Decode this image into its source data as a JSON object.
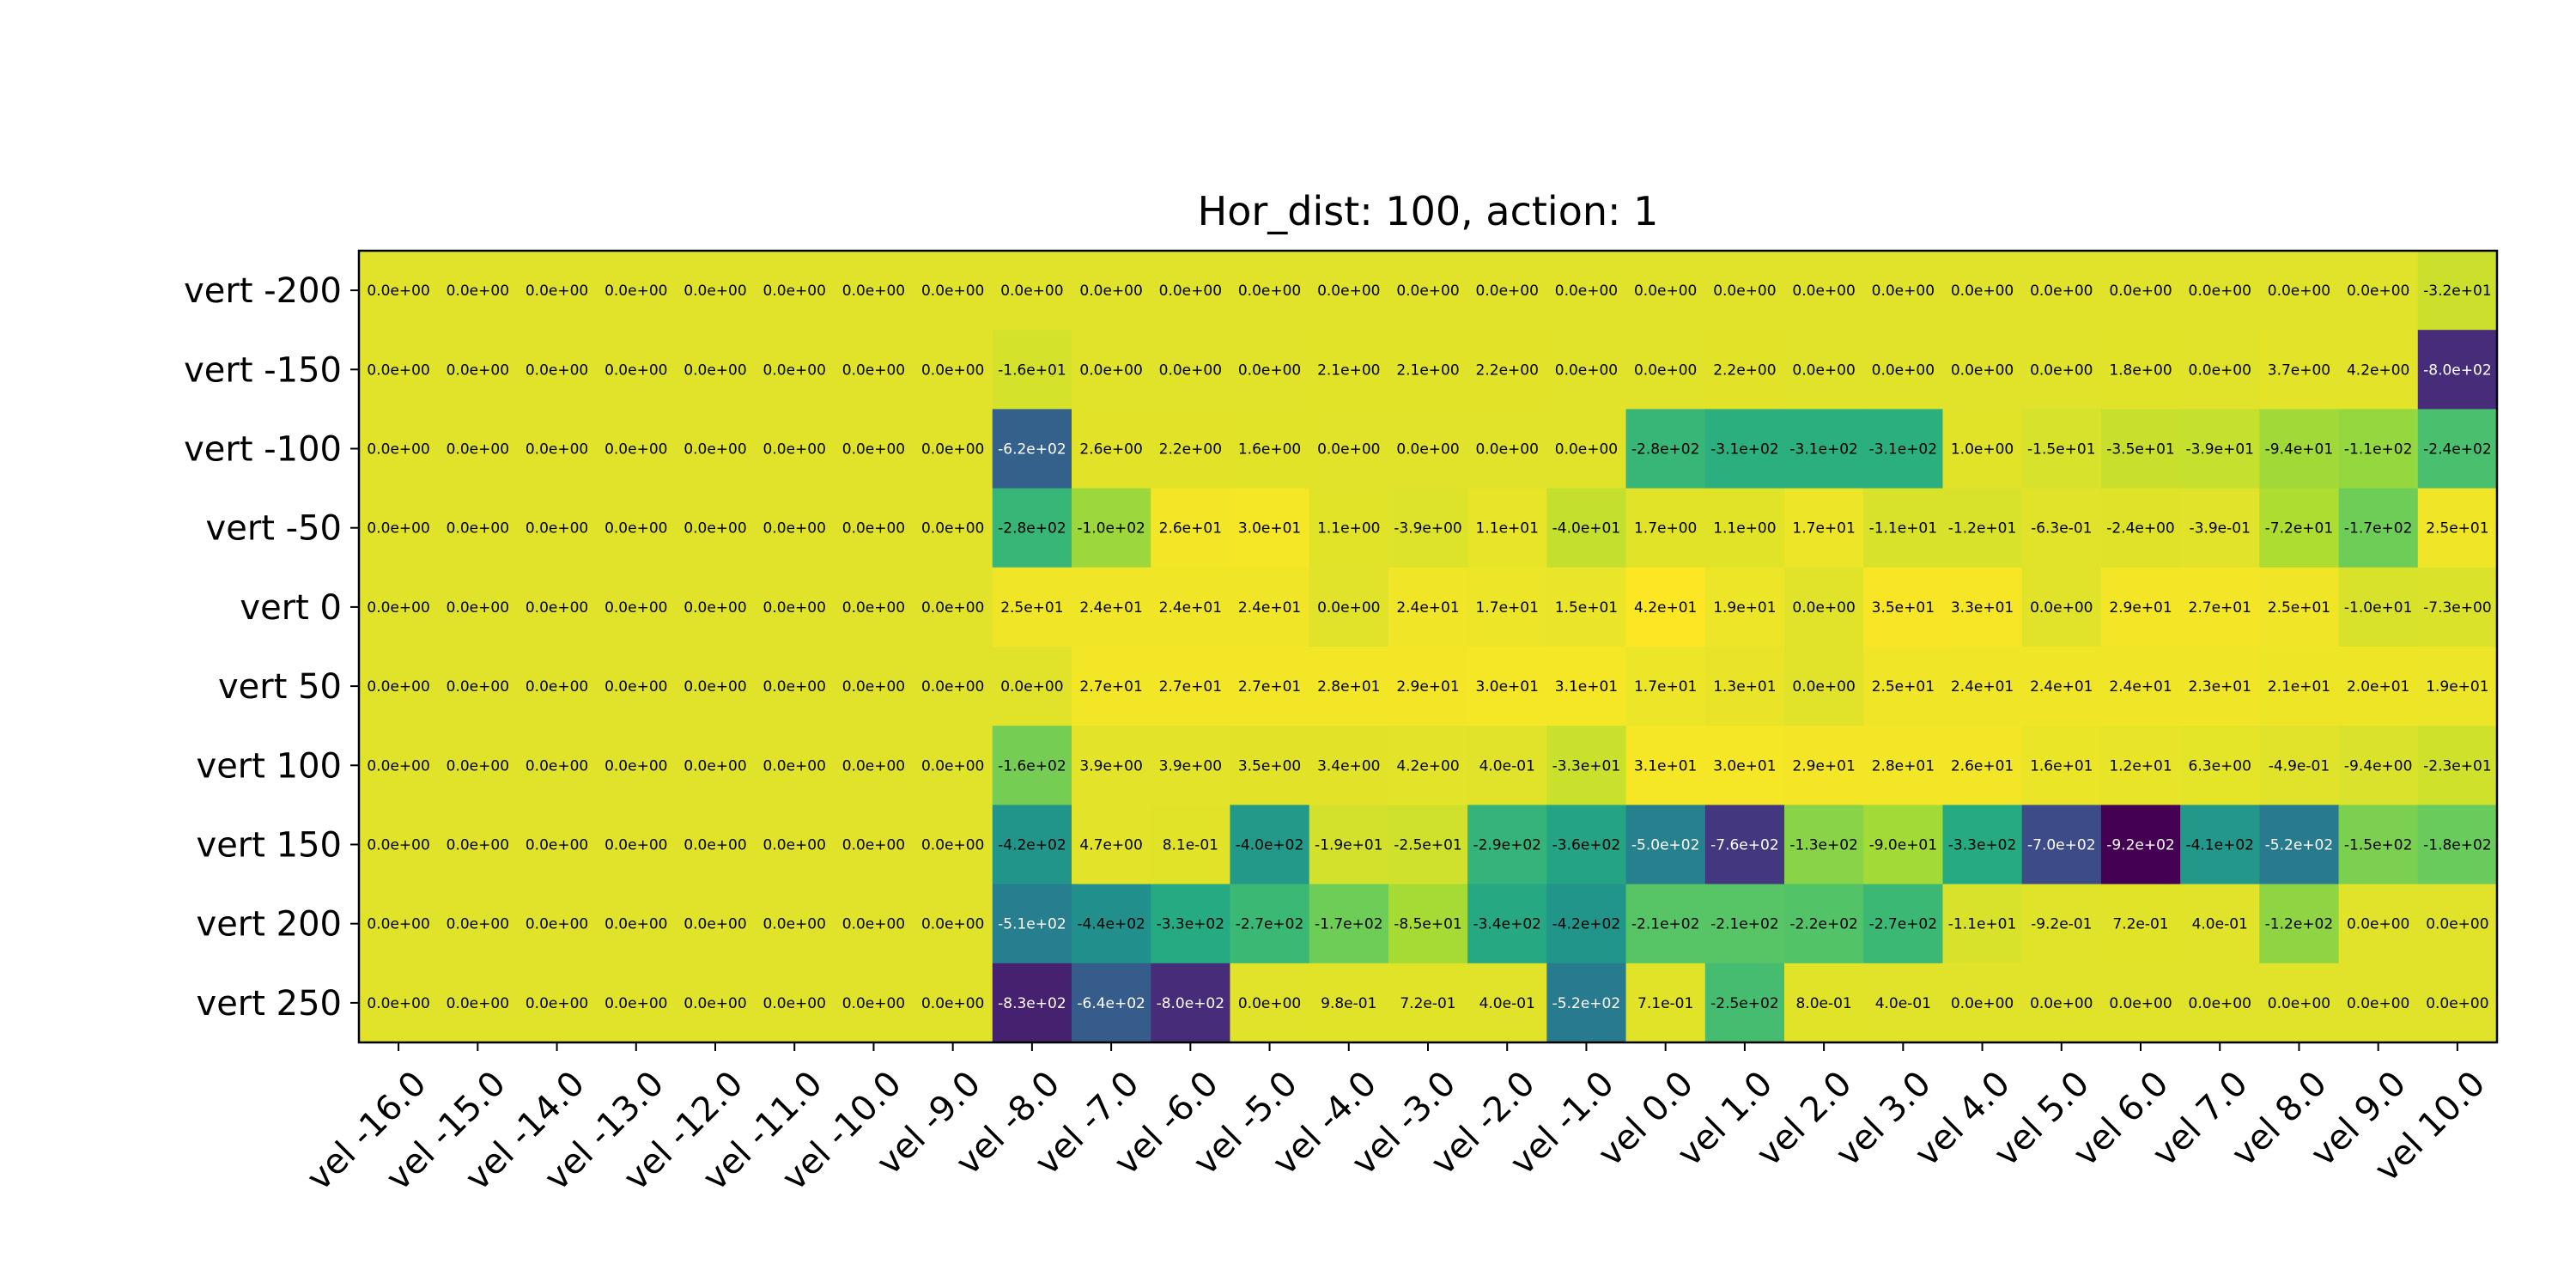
{
  "chart_data": {
    "type": "heatmap",
    "title": "Hor_dist: 100, action: 1",
    "x_labels": [
      "vel -16.0",
      "vel -15.0",
      "vel -14.0",
      "vel -13.0",
      "vel -12.0",
      "vel -11.0",
      "vel -10.0",
      "vel -9.0",
      "vel -8.0",
      "vel -7.0",
      "vel -6.0",
      "vel -5.0",
      "vel -4.0",
      "vel -3.0",
      "vel -2.0",
      "vel -1.0",
      "vel 0.0",
      "vel 1.0",
      "vel 2.0",
      "vel 3.0",
      "vel 4.0",
      "vel 5.0",
      "vel 6.0",
      "vel 7.0",
      "vel 8.0",
      "vel 9.0",
      "vel 10.0"
    ],
    "y_labels": [
      "vert -200",
      "vert -150",
      "vert -100",
      "vert -50",
      "vert 0",
      "vert 50",
      "vert 100",
      "vert 150",
      "vert 200",
      "vert 250"
    ],
    "colormap": "viridis",
    "cell_labels": [
      [
        "0.0e+00",
        "0.0e+00",
        "0.0e+00",
        "0.0e+00",
        "0.0e+00",
        "0.0e+00",
        "0.0e+00",
        "0.0e+00",
        "0.0e+00",
        "0.0e+00",
        "0.0e+00",
        "0.0e+00",
        "0.0e+00",
        "0.0e+00",
        "0.0e+00",
        "0.0e+00",
        "0.0e+00",
        "0.0e+00",
        "0.0e+00",
        "0.0e+00",
        "0.0e+00",
        "0.0e+00",
        "0.0e+00",
        "0.0e+00",
        "0.0e+00",
        "0.0e+00",
        "-3.2e+01"
      ],
      [
        "0.0e+00",
        "0.0e+00",
        "0.0e+00",
        "0.0e+00",
        "0.0e+00",
        "0.0e+00",
        "0.0e+00",
        "0.0e+00",
        "-1.6e+01",
        "0.0e+00",
        "0.0e+00",
        "0.0e+00",
        "2.1e+00",
        "2.1e+00",
        "2.2e+00",
        "0.0e+00",
        "0.0e+00",
        "2.2e+00",
        "0.0e+00",
        "0.0e+00",
        "0.0e+00",
        "0.0e+00",
        "1.8e+00",
        "0.0e+00",
        "3.7e+00",
        "4.2e+00",
        "-8.0e+02"
      ],
      [
        "0.0e+00",
        "0.0e+00",
        "0.0e+00",
        "0.0e+00",
        "0.0e+00",
        "0.0e+00",
        "0.0e+00",
        "0.0e+00",
        "-6.2e+02",
        "2.6e+00",
        "2.2e+00",
        "1.6e+00",
        "0.0e+00",
        "0.0e+00",
        "0.0e+00",
        "0.0e+00",
        "-2.8e+02",
        "-3.1e+02",
        "-3.1e+02",
        "-3.1e+02",
        "1.0e+00",
        "-1.5e+01",
        "-3.5e+01",
        "-3.9e+01",
        "-9.4e+01",
        "-1.1e+02",
        "-2.4e+02"
      ],
      [
        "0.0e+00",
        "0.0e+00",
        "0.0e+00",
        "0.0e+00",
        "0.0e+00",
        "0.0e+00",
        "0.0e+00",
        "0.0e+00",
        "-2.8e+02",
        "-1.0e+02",
        "2.6e+01",
        "3.0e+01",
        "1.1e+00",
        "-3.9e+00",
        "1.1e+01",
        "-4.0e+01",
        "1.7e+00",
        "1.1e+00",
        "1.7e+01",
        "-1.1e+01",
        "-1.2e+01",
        "-6.3e-01",
        "-2.4e+00",
        "-3.9e-01",
        "-7.2e+01",
        "-1.7e+02",
        "2.5e+01"
      ],
      [
        "0.0e+00",
        "0.0e+00",
        "0.0e+00",
        "0.0e+00",
        "0.0e+00",
        "0.0e+00",
        "0.0e+00",
        "0.0e+00",
        "2.5e+01",
        "2.4e+01",
        "2.4e+01",
        "2.4e+01",
        "0.0e+00",
        "2.4e+01",
        "1.7e+01",
        "1.5e+01",
        "4.2e+01",
        "1.9e+01",
        "0.0e+00",
        "3.5e+01",
        "3.3e+01",
        "0.0e+00",
        "2.9e+01",
        "2.7e+01",
        "2.5e+01",
        "-1.0e+01",
        "-7.3e+00"
      ],
      [
        "0.0e+00",
        "0.0e+00",
        "0.0e+00",
        "0.0e+00",
        "0.0e+00",
        "0.0e+00",
        "0.0e+00",
        "0.0e+00",
        "0.0e+00",
        "2.7e+01",
        "2.7e+01",
        "2.7e+01",
        "2.8e+01",
        "2.9e+01",
        "3.0e+01",
        "3.1e+01",
        "1.7e+01",
        "1.3e+01",
        "0.0e+00",
        "2.5e+01",
        "2.4e+01",
        "2.4e+01",
        "2.4e+01",
        "2.3e+01",
        "2.1e+01",
        "2.0e+01",
        "1.9e+01"
      ],
      [
        "0.0e+00",
        "0.0e+00",
        "0.0e+00",
        "0.0e+00",
        "0.0e+00",
        "0.0e+00",
        "0.0e+00",
        "0.0e+00",
        "-1.6e+02",
        "3.9e+00",
        "3.9e+00",
        "3.5e+00",
        "3.4e+00",
        "4.2e+00",
        "4.0e-01",
        "-3.3e+01",
        "3.1e+01",
        "3.0e+01",
        "2.9e+01",
        "2.8e+01",
        "2.6e+01",
        "1.6e+01",
        "1.2e+01",
        "6.3e+00",
        "-4.9e-01",
        "-9.4e+00",
        "-2.3e+01"
      ],
      [
        "0.0e+00",
        "0.0e+00",
        "0.0e+00",
        "0.0e+00",
        "0.0e+00",
        "0.0e+00",
        "0.0e+00",
        "0.0e+00",
        "-4.2e+02",
        "4.7e+00",
        "8.1e-01",
        "-4.0e+02",
        "-1.9e+01",
        "-2.5e+01",
        "-2.9e+02",
        "-3.6e+02",
        "-5.0e+02",
        "-7.6e+02",
        "-1.3e+02",
        "-9.0e+01",
        "-3.3e+02",
        "-7.0e+02",
        "-9.2e+02",
        "-4.1e+02",
        "-5.2e+02",
        "-1.5e+02",
        "-1.8e+02"
      ],
      [
        "0.0e+00",
        "0.0e+00",
        "0.0e+00",
        "0.0e+00",
        "0.0e+00",
        "0.0e+00",
        "0.0e+00",
        "0.0e+00",
        "-5.1e+02",
        "-4.4e+02",
        "-3.3e+02",
        "-2.7e+02",
        "-1.7e+02",
        "-8.5e+01",
        "-3.4e+02",
        "-4.2e+02",
        "-2.1e+02",
        "-2.1e+02",
        "-2.2e+02",
        "-2.7e+02",
        "-1.1e+01",
        "-9.2e-01",
        "7.2e-01",
        "4.0e-01",
        "-1.2e+02",
        "0.0e+00",
        "0.0e+00"
      ],
      [
        "0.0e+00",
        "0.0e+00",
        "0.0e+00",
        "0.0e+00",
        "0.0e+00",
        "0.0e+00",
        "0.0e+00",
        "0.0e+00",
        "-8.3e+02",
        "-6.4e+02",
        "-8.0e+02",
        "0.0e+00",
        "9.8e-01",
        "7.2e-01",
        "4.0e-01",
        "-5.2e+02",
        "7.1e-01",
        "-2.5e+02",
        "8.0e-01",
        "4.0e-01",
        "0.0e+00",
        "0.0e+00",
        "0.0e+00",
        "0.0e+00",
        "0.0e+00",
        "0.0e+00",
        "0.0e+00"
      ]
    ],
    "values": [
      [
        0,
        0,
        0,
        0,
        0,
        0,
        0,
        0,
        0,
        0,
        0,
        0,
        0,
        0,
        0,
        0,
        0,
        0,
        0,
        0,
        0,
        0,
        0,
        0,
        0,
        0,
        -32
      ],
      [
        0,
        0,
        0,
        0,
        0,
        0,
        0,
        0,
        -16,
        0,
        0,
        0,
        2.1,
        2.1,
        2.2,
        0,
        0,
        2.2,
        0,
        0,
        0,
        0,
        1.8,
        0,
        3.7,
        4.2,
        -800
      ],
      [
        0,
        0,
        0,
        0,
        0,
        0,
        0,
        0,
        -620,
        2.6,
        2.2,
        1.6,
        0,
        0,
        0,
        0,
        -280,
        -310,
        -310,
        -310,
        1.0,
        -15,
        -35,
        -39,
        -94,
        -110,
        -240
      ],
      [
        0,
        0,
        0,
        0,
        0,
        0,
        0,
        0,
        -280,
        -100,
        26,
        30,
        1.1,
        -3.9,
        11,
        -40,
        1.7,
        1.1,
        17,
        -11,
        -12,
        -0.63,
        -2.4,
        -0.39,
        -72,
        -170,
        25
      ],
      [
        0,
        0,
        0,
        0,
        0,
        0,
        0,
        0,
        25,
        24,
        24,
        24,
        0,
        24,
        17,
        15,
        42,
        19,
        0,
        35,
        33,
        0,
        29,
        27,
        25,
        -10,
        -7.3
      ],
      [
        0,
        0,
        0,
        0,
        0,
        0,
        0,
        0,
        0,
        27,
        27,
        27,
        28,
        29,
        30,
        31,
        17,
        13,
        0,
        25,
        24,
        24,
        24,
        23,
        21,
        20,
        19
      ],
      [
        0,
        0,
        0,
        0,
        0,
        0,
        0,
        0,
        -160,
        3.9,
        3.9,
        3.5,
        3.4,
        4.2,
        0.4,
        -33,
        31,
        30,
        29,
        28,
        26,
        16,
        12,
        6.3,
        -0.49,
        -9.4,
        -23
      ],
      [
        0,
        0,
        0,
        0,
        0,
        0,
        0,
        0,
        -420,
        4.7,
        0.81,
        -400,
        -19,
        -25,
        -290,
        -360,
        -500,
        -760,
        -130,
        -90,
        -330,
        -700,
        -920,
        -410,
        -520,
        -150,
        -180
      ],
      [
        0,
        0,
        0,
        0,
        0,
        0,
        0,
        0,
        -510,
        -440,
        -330,
        -270,
        -170,
        -85,
        -340,
        -420,
        -210,
        -210,
        -220,
        -270,
        -11,
        -0.92,
        0.72,
        0.4,
        -120,
        0,
        0
      ],
      [
        0,
        0,
        0,
        0,
        0,
        0,
        0,
        0,
        -830,
        -640,
        -800,
        0,
        0.98,
        0.72,
        0.4,
        -520,
        0.71,
        -250,
        0.8,
        0.4,
        0,
        0,
        0,
        0,
        0,
        0,
        0
      ]
    ],
    "vmin": -920,
    "vmax": 42
  }
}
